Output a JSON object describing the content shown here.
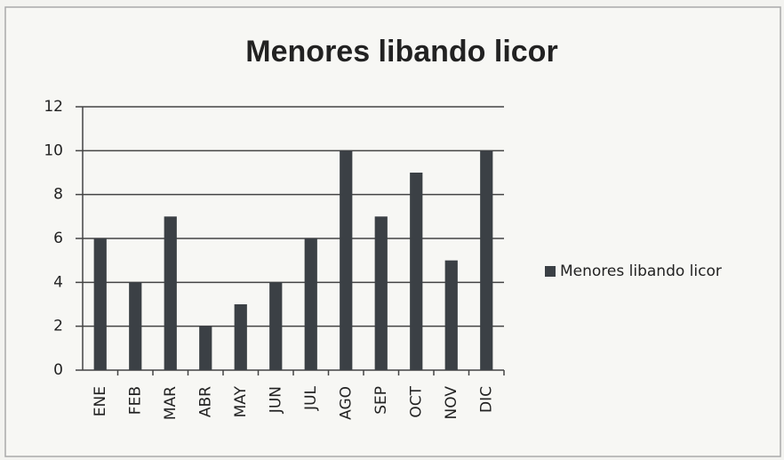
{
  "chart_data": {
    "type": "bar",
    "title": "Menores libando licor",
    "categories": [
      "ENE",
      "FEB",
      "MAR",
      "ABR",
      "MAY",
      "JUN",
      "JUL",
      "AGO",
      "SEP",
      "OCT",
      "NOV",
      "DIC"
    ],
    "series": [
      {
        "name": "Menores libando licor",
        "color": "#3b4045",
        "values": [
          6,
          4,
          7,
          2,
          3,
          4,
          6,
          10,
          7,
          9,
          5,
          10
        ]
      }
    ],
    "ylim": [
      0,
      12
    ],
    "yticks": [
      0,
      2,
      4,
      6,
      8,
      10,
      12
    ],
    "grid": true,
    "legend": "right"
  }
}
